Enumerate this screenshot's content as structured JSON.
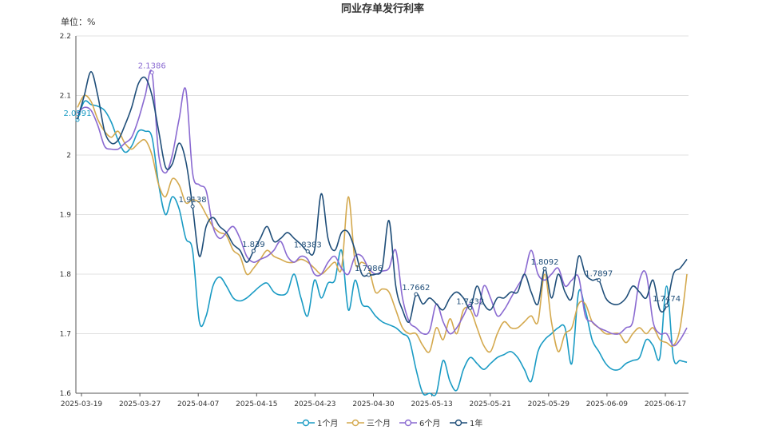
{
  "chart_data": {
    "type": "line",
    "title": "同业存单发行利率",
    "unit_label": "单位：%",
    "ylim": [
      1.6,
      2.2
    ],
    "y_ticks": [
      1.6,
      1.7,
      1.8,
      1.9,
      2,
      2.1,
      2.2
    ],
    "y_tick_labels": [
      "1.6",
      "1.7",
      "1.8",
      "1.9",
      "2",
      "2.1",
      "2.2"
    ],
    "x_tick_labels": [
      "2025-03-19",
      "2025-03-27",
      "2025-04-07",
      "2025-04-15",
      "2025-04-23",
      "2025-04-30",
      "2025-05-13",
      "2025-05-21",
      "2025-05-29",
      "2025-06-09",
      "2025-06-17"
    ],
    "grid": true,
    "legend_position": "bottom",
    "series": [
      {
        "name": "1个月",
        "color": "#1a9bc4",
        "values": [
          2.0591,
          2.09,
          2.085,
          2.082,
          2.075,
          2.055,
          2.025,
          2.005,
          2.015,
          2.04,
          2.04,
          2.03,
          1.95,
          1.9,
          1.93,
          1.91,
          1.86,
          1.84,
          1.72,
          1.73,
          1.78,
          1.795,
          1.78,
          1.76,
          1.755,
          1.76,
          1.77,
          1.78,
          1.785,
          1.77,
          1.765,
          1.77,
          1.8,
          1.76,
          1.73,
          1.79,
          1.76,
          1.785,
          1.79,
          1.84,
          1.74,
          1.79,
          1.75,
          1.745,
          1.73,
          1.72,
          1.715,
          1.71,
          1.7,
          1.69,
          1.64,
          1.6,
          1.6,
          1.6,
          1.655,
          1.62,
          1.605,
          1.64,
          1.66,
          1.65,
          1.64,
          1.65,
          1.66,
          1.665,
          1.67,
          1.66,
          1.64,
          1.62,
          1.67,
          1.69,
          1.7,
          1.71,
          1.71,
          1.65,
          1.77,
          1.74,
          1.69,
          1.67,
          1.65,
          1.64,
          1.64,
          1.65,
          1.655,
          1.66,
          1.69,
          1.68,
          1.66,
          1.78,
          1.66,
          1.655,
          1.652
        ],
        "labels": [
          {
            "index": 0,
            "text": "2.0591"
          }
        ]
      },
      {
        "name": "三个月",
        "color": "#d4a94e",
        "values": [
          2.08,
          2.1,
          2.09,
          2.06,
          2.04,
          2.03,
          2.04,
          2.02,
          2.01,
          2.02,
          2.025,
          2.0,
          1.95,
          1.93,
          1.96,
          1.95,
          1.92,
          1.925,
          1.92,
          1.9,
          1.88,
          1.87,
          1.865,
          1.84,
          1.83,
          1.8,
          1.81,
          1.825,
          1.84,
          1.83,
          1.825,
          1.82,
          1.82,
          1.825,
          1.82,
          1.81,
          1.8,
          1.81,
          1.82,
          1.81,
          1.93,
          1.82,
          1.82,
          1.81,
          1.77,
          1.775,
          1.77,
          1.74,
          1.71,
          1.7,
          1.7,
          1.68,
          1.67,
          1.71,
          1.69,
          1.725,
          1.7,
          1.74,
          1.74,
          1.71,
          1.68,
          1.67,
          1.7,
          1.72,
          1.71,
          1.71,
          1.72,
          1.73,
          1.72,
          1.8,
          1.72,
          1.67,
          1.7,
          1.71,
          1.75,
          1.75,
          1.72,
          1.71,
          1.7,
          1.7,
          1.7,
          1.685,
          1.7,
          1.71,
          1.7,
          1.71,
          1.69,
          1.685,
          1.68,
          1.71,
          1.8
        ],
        "labels": []
      },
      {
        "name": "6个月",
        "color": "#8a6ad1",
        "values": [
          2.07,
          2.08,
          2.075,
          2.05,
          2.015,
          2.01,
          2.01,
          2.02,
          2.03,
          2.06,
          2.1,
          2.1386,
          2.0,
          1.97,
          2.0,
          2.06,
          2.11,
          1.97,
          1.95,
          1.94,
          1.88,
          1.86,
          1.87,
          1.88,
          1.86,
          1.83,
          1.82,
          1.825,
          1.83,
          1.84,
          1.855,
          1.83,
          1.82,
          1.83,
          1.825,
          1.8,
          1.8,
          1.82,
          1.83,
          1.81,
          1.8,
          1.83,
          1.83,
          1.81,
          1.8,
          1.805,
          1.81,
          1.84,
          1.76,
          1.72,
          1.71,
          1.7,
          1.705,
          1.75,
          1.72,
          1.7,
          1.71,
          1.73,
          1.75,
          1.73,
          1.78,
          1.76,
          1.73,
          1.74,
          1.76,
          1.78,
          1.8,
          1.84,
          1.8,
          1.79,
          1.8,
          1.81,
          1.78,
          1.79,
          1.795,
          1.73,
          1.72,
          1.71,
          1.705,
          1.7,
          1.7,
          1.71,
          1.72,
          1.79,
          1.8,
          1.72,
          1.7,
          1.7,
          1.68,
          1.69,
          1.71
        ],
        "labels": [
          {
            "index": 11,
            "text": "2.1386"
          }
        ]
      },
      {
        "name": "1年",
        "color": "#1f4e79",
        "values": [
          2.06,
          2.1,
          2.14,
          2.1,
          2.04,
          2.02,
          2.025,
          2.05,
          2.08,
          2.12,
          2.13,
          2.1,
          2.04,
          1.98,
          1.985,
          2.02,
          1.99,
          1.9138,
          1.83,
          1.88,
          1.895,
          1.88,
          1.87,
          1.85,
          1.84,
          1.82,
          1.839,
          1.86,
          1.88,
          1.855,
          1.86,
          1.87,
          1.86,
          1.85,
          1.8383,
          1.84,
          1.935,
          1.86,
          1.84,
          1.87,
          1.87,
          1.84,
          1.8,
          1.7986,
          1.8,
          1.81,
          1.89,
          1.78,
          1.74,
          1.72,
          1.7662,
          1.75,
          1.76,
          1.75,
          1.74,
          1.76,
          1.77,
          1.76,
          1.7432,
          1.78,
          1.75,
          1.74,
          1.76,
          1.76,
          1.77,
          1.77,
          1.8,
          1.77,
          1.75,
          1.8092,
          1.76,
          1.8,
          1.77,
          1.76,
          1.83,
          1.8,
          1.79,
          1.7897,
          1.76,
          1.75,
          1.75,
          1.76,
          1.78,
          1.77,
          1.76,
          1.79,
          1.74,
          1.7474,
          1.8,
          1.81,
          1.825
        ],
        "labels": [
          {
            "index": 17,
            "text": "1.9138"
          },
          {
            "index": 26,
            "text": "1.839"
          },
          {
            "index": 34,
            "text": "1.8383"
          },
          {
            "index": 43,
            "text": "1.7986"
          },
          {
            "index": 50,
            "text": "1.7662"
          },
          {
            "index": 58,
            "text": "1.7432"
          },
          {
            "index": 69,
            "text": "1.8092"
          },
          {
            "index": 77,
            "text": "1.7897"
          },
          {
            "index": 87,
            "text": "1.7474"
          }
        ]
      }
    ]
  }
}
